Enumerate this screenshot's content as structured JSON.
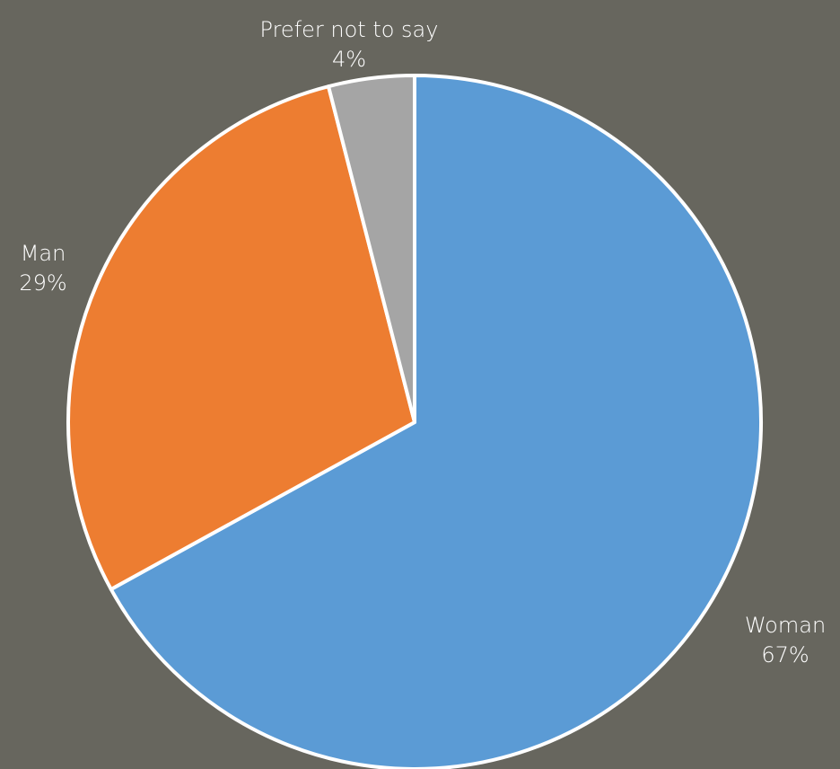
{
  "chart_data": {
    "type": "pie",
    "title": "",
    "slices": [
      {
        "label": "Woman",
        "value": 67,
        "value_label": "67%",
        "color": "#5b9bd5"
      },
      {
        "label": "Man",
        "value": 29,
        "value_label": "29%",
        "color": "#ed7d31"
      },
      {
        "label": "Prefer not to say",
        "value": 4,
        "value_label": "4%",
        "color": "#a5a5a5"
      }
    ],
    "start_angle_deg": 0,
    "direction": "clockwise",
    "slice_border_color": "#ffffff",
    "legend": "none",
    "data_labels": "outside"
  }
}
